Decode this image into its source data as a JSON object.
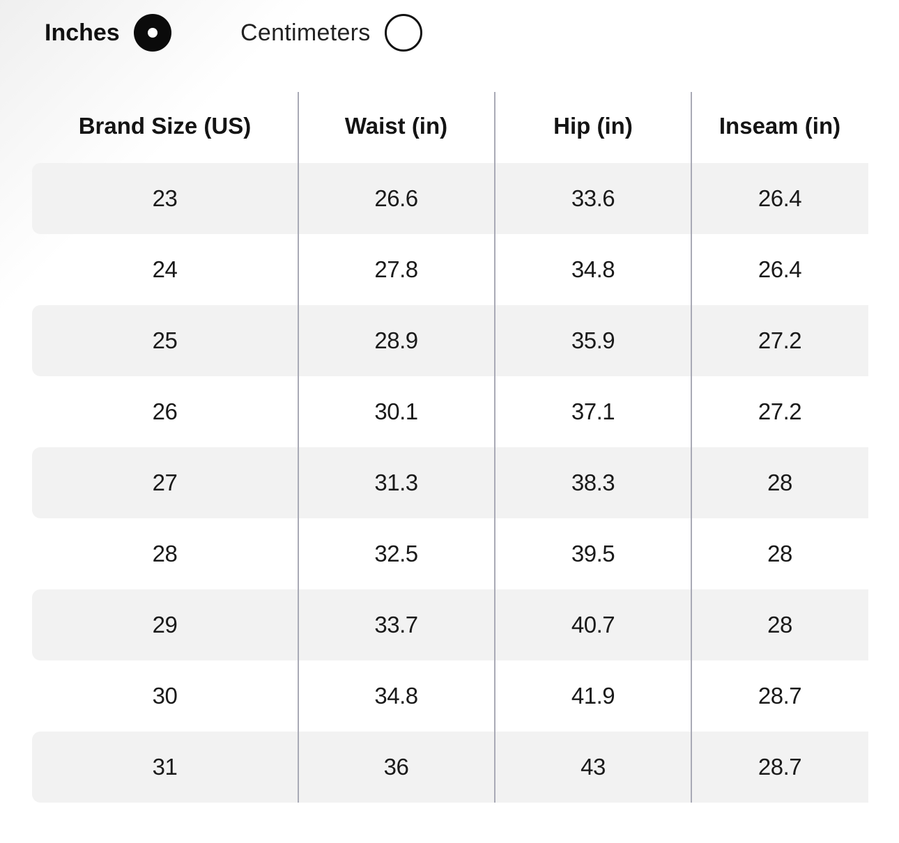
{
  "unit_toggle": {
    "options": [
      {
        "label": "Inches",
        "selected": true
      },
      {
        "label": "Centimeters",
        "selected": false
      }
    ]
  },
  "size_chart": {
    "headers": [
      "Brand Size (US)",
      "Waist (in)",
      "Hip (in)",
      "Inseam (in)"
    ],
    "rows": [
      [
        "23",
        "26.6",
        "33.6",
        "26.4"
      ],
      [
        "24",
        "27.8",
        "34.8",
        "26.4"
      ],
      [
        "25",
        "28.9",
        "35.9",
        "27.2"
      ],
      [
        "26",
        "30.1",
        "37.1",
        "27.2"
      ],
      [
        "27",
        "31.3",
        "38.3",
        "28"
      ],
      [
        "28",
        "32.5",
        "39.5",
        "28"
      ],
      [
        "29",
        "33.7",
        "40.7",
        "28"
      ],
      [
        "30",
        "34.8",
        "41.9",
        "28.7"
      ],
      [
        "31",
        "36",
        "43",
        "28.7"
      ]
    ]
  },
  "colors": {
    "row_shade": "#f2f2f2",
    "divider": "#a9aab6",
    "radio_selected": "#0b0b0b"
  }
}
